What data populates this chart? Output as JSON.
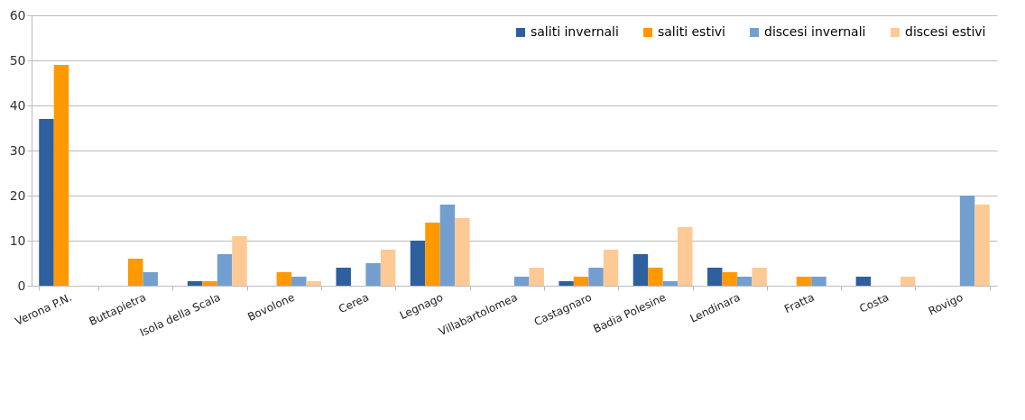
{
  "chart_data": {
    "type": "bar",
    "categories": [
      "Verona P.N.",
      "Buttapietra",
      "Isola della Scala",
      "Bovolone",
      "Cerea",
      "Legnago",
      "Villabartolomea",
      "Castagnaro",
      "Badia Polesine",
      "Lendinara",
      "Fratta",
      "Costa",
      "Rovigo"
    ],
    "series": [
      {
        "name": "saliti invernali",
        "color": "#2e5f9e",
        "values": [
          37,
          0,
          1,
          0,
          4,
          10,
          0,
          1,
          7,
          4,
          0,
          2,
          0
        ]
      },
      {
        "name": "saliti estivi",
        "color": "#ff9900",
        "values": [
          49,
          6,
          1,
          3,
          0,
          14,
          0,
          2,
          4,
          3,
          2,
          0,
          0
        ]
      },
      {
        "name": "discesi invernali",
        "color": "#729fcf",
        "values": [
          0,
          3,
          7,
          2,
          5,
          18,
          2,
          4,
          1,
          2,
          2,
          0,
          20
        ]
      },
      {
        "name": "discesi estivi",
        "color": "#fdc994",
        "values": [
          0,
          0,
          11,
          1,
          8,
          15,
          4,
          8,
          13,
          4,
          0,
          2,
          18
        ]
      }
    ],
    "ylim": [
      0,
      60
    ],
    "yticks": [
      0,
      10,
      20,
      30,
      40,
      50,
      60
    ],
    "grid": "y",
    "legend": "top right"
  }
}
